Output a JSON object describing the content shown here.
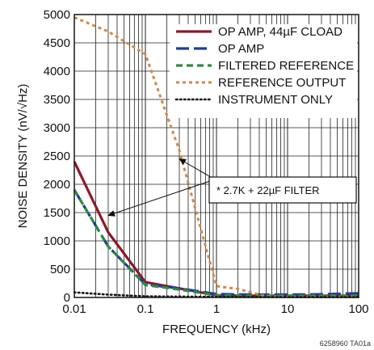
{
  "chart_data": {
    "type": "line",
    "xscale": "log",
    "xlim": [
      0.01,
      100
    ],
    "ylim": [
      0,
      5000
    ],
    "grid": true,
    "legend_position": "top-right",
    "xlabel": "FREQUENCY (kHz)",
    "ylabel": "NOISE DENSITY (nV/√Hz)",
    "x_ticks": [
      0.01,
      0.1,
      1,
      10,
      100
    ],
    "x_tick_labels": [
      "0.01",
      "0.1",
      "1",
      "10",
      "100"
    ],
    "y_ticks": [
      0,
      500,
      1000,
      1500,
      2000,
      2500,
      3000,
      3500,
      4000,
      4500,
      5000
    ],
    "y_tick_labels": [
      "0",
      "500",
      "1000",
      "1500",
      "2000",
      "2500",
      "3000",
      "3500",
      "4000",
      "4500",
      "5000"
    ],
    "series": [
      {
        "name": "OP AMP, 44µF CLOAD",
        "color": "#8B1A2B",
        "dash": "solid",
        "x": [
          0.01,
          0.03,
          0.1,
          0.3,
          1,
          3,
          10,
          30,
          100
        ],
        "y": [
          2400,
          1150,
          270,
          160,
          40,
          30,
          30,
          30,
          30
        ]
      },
      {
        "name": "OP AMP",
        "color": "#1F3E9A",
        "dash": "long",
        "x": [
          0.01,
          0.03,
          0.1,
          0.3,
          1,
          3,
          10,
          30,
          100
        ],
        "y": [
          1900,
          900,
          230,
          160,
          60,
          50,
          50,
          55,
          75
        ]
      },
      {
        "name": "FILTERED REFERENCE",
        "color": "#2E8B3E",
        "dash": "medium",
        "x": [
          0.01,
          0.03,
          0.1,
          0.3,
          1,
          3,
          10,
          30,
          100
        ],
        "y": [
          1900,
          900,
          220,
          140,
          40,
          30,
          30,
          30,
          30
        ]
      },
      {
        "name": "REFERENCE OUTPUT",
        "color": "#D08A45",
        "dash": "short",
        "x": [
          0.01,
          0.03,
          0.1,
          0.3,
          1,
          2,
          5,
          10,
          100
        ],
        "y": [
          4950,
          4700,
          4300,
          2600,
          200,
          150,
          20,
          10,
          10
        ]
      },
      {
        "name": "INSTRUMENT ONLY",
        "color": "#111111",
        "dash": "dotted",
        "x": [
          0.01,
          0.03,
          0.1,
          1,
          10,
          100
        ],
        "y": [
          90,
          50,
          20,
          10,
          5,
          5
        ]
      }
    ],
    "annotation": {
      "text": "* 2.7K + 22µF FILTER",
      "targets": [
        {
          "x": 0.03,
          "y": 1450
        },
        {
          "x": 0.3,
          "y": 2450
        }
      ]
    },
    "figure_id": "6258960 TA01a"
  }
}
